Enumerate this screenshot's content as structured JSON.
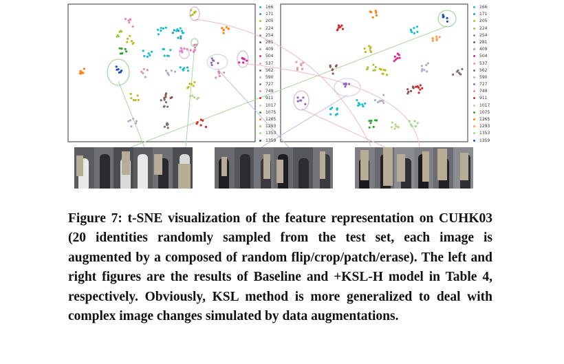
{
  "identities": [
    "166",
    "171",
    "205",
    "224",
    "254",
    "281",
    "409",
    "504",
    "537",
    "562",
    "590",
    "727",
    "749",
    "911",
    "1017",
    "1075",
    "1265",
    "1293",
    "1353",
    "1359"
  ],
  "colors": [
    "#17becf",
    "#1f9fb4",
    "#bcbd22",
    "#9ccc3a",
    "#8c8c8c",
    "#8c564b",
    "#e377c2",
    "#d62790",
    "#e59aa0",
    "#7f6f6f",
    "#aab0c8",
    "#9467bd",
    "#e78ab0",
    "#d62728",
    "#b5d98c",
    "#2ca02c",
    "#ff7f0e",
    "#ff9e4a",
    "#98df8a",
    "#1f4fb4"
  ],
  "caption": "Figure 7: t-SNE visualization of the feature representation on CUHK03 (20 identities randomly sampled from the test set, each image is augmented by a composed of random flip/crop/patch/erase). The left and right figures are the results of Baseline and +KSL-H model in Table 4, respectively. Obviously, KSL method is more generalized to deal with complex image changes simulated by data augmentations."
}
